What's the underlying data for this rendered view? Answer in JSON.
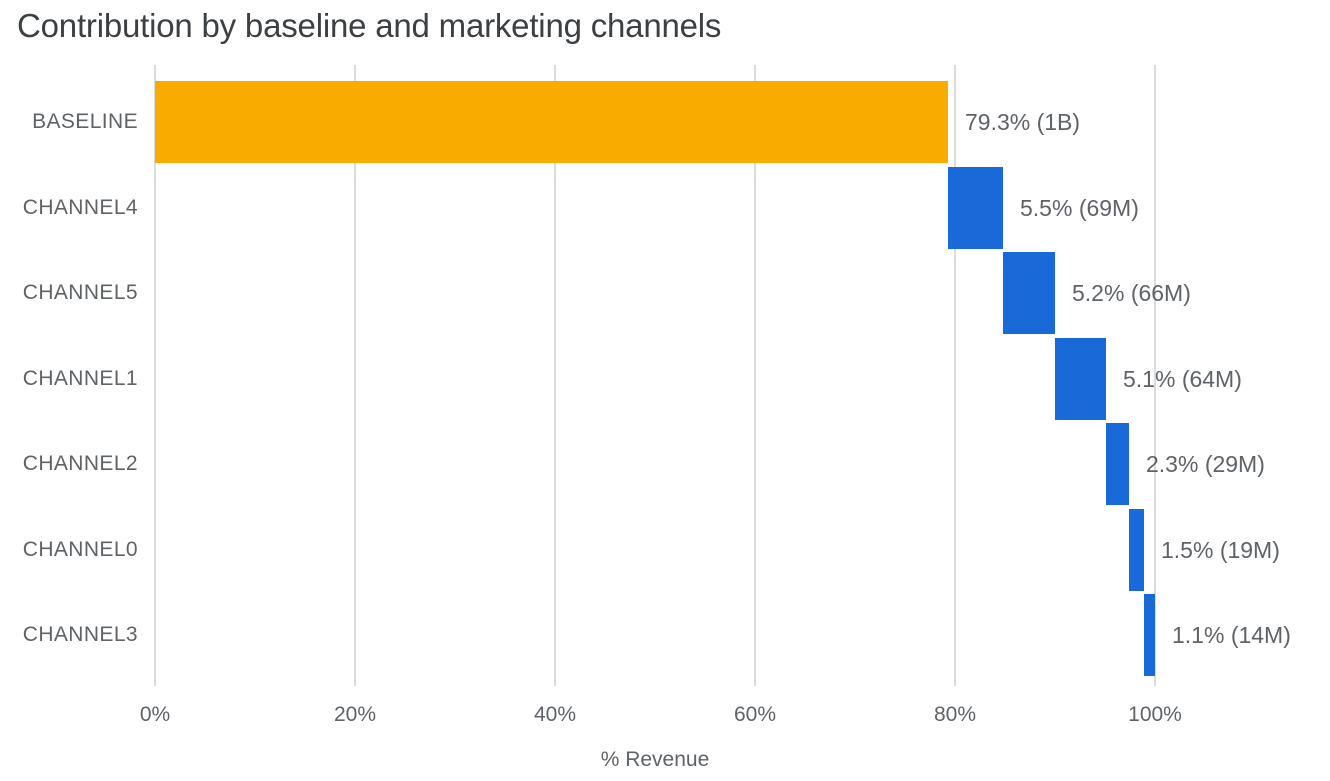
{
  "page": {
    "background": "#FFFFFF"
  },
  "chart_data": {
    "type": "bar",
    "subtype": "waterfall",
    "orientation": "horizontal",
    "title": "Contribution by baseline and marketing channels",
    "xlabel": "% Revenue",
    "xlim": [
      0,
      116.5
    ],
    "grid": "vertical-only",
    "legend": "none",
    "x_ticks": [
      {
        "value": 0,
        "label": "0%"
      },
      {
        "value": 20,
        "label": "20%"
      },
      {
        "value": 40,
        "label": "40%"
      },
      {
        "value": 60,
        "label": "60%"
      },
      {
        "value": 80,
        "label": "80%"
      },
      {
        "value": 100,
        "label": "100%"
      }
    ],
    "categories": [
      "BASELINE",
      "CHANNEL4",
      "CHANNEL5",
      "CHANNEL1",
      "CHANNEL2",
      "CHANNEL0",
      "CHANNEL3"
    ],
    "items": [
      {
        "category": "BASELINE",
        "start": 0,
        "end": 79.3,
        "pct": 79.3,
        "label": "79.3% (1B)",
        "role": "baseline"
      },
      {
        "category": "CHANNEL4",
        "start": 79.3,
        "end": 84.8,
        "pct": 5.5,
        "label": "5.5% (69M)",
        "role": "channel"
      },
      {
        "category": "CHANNEL5",
        "start": 84.8,
        "end": 90.0,
        "pct": 5.2,
        "label": "5.2% (66M)",
        "role": "channel"
      },
      {
        "category": "CHANNEL1",
        "start": 90.0,
        "end": 95.1,
        "pct": 5.1,
        "label": "5.1% (64M)",
        "role": "channel"
      },
      {
        "category": "CHANNEL2",
        "start": 95.1,
        "end": 97.4,
        "pct": 2.3,
        "label": "2.3% (29M)",
        "role": "channel"
      },
      {
        "category": "CHANNEL0",
        "start": 97.4,
        "end": 98.9,
        "pct": 1.5,
        "label": "1.5% (19M)",
        "role": "channel"
      },
      {
        "category": "CHANNEL3",
        "start": 98.9,
        "end": 100.0,
        "pct": 1.1,
        "label": "1.1% (14M)",
        "role": "channel"
      }
    ],
    "colors": {
      "baseline_bar": "#F9AB00",
      "channel_bar": "#1A69D8",
      "gridline": "#DADCE0",
      "label_text": "#5F6368",
      "title_text": "#3C4043"
    }
  }
}
